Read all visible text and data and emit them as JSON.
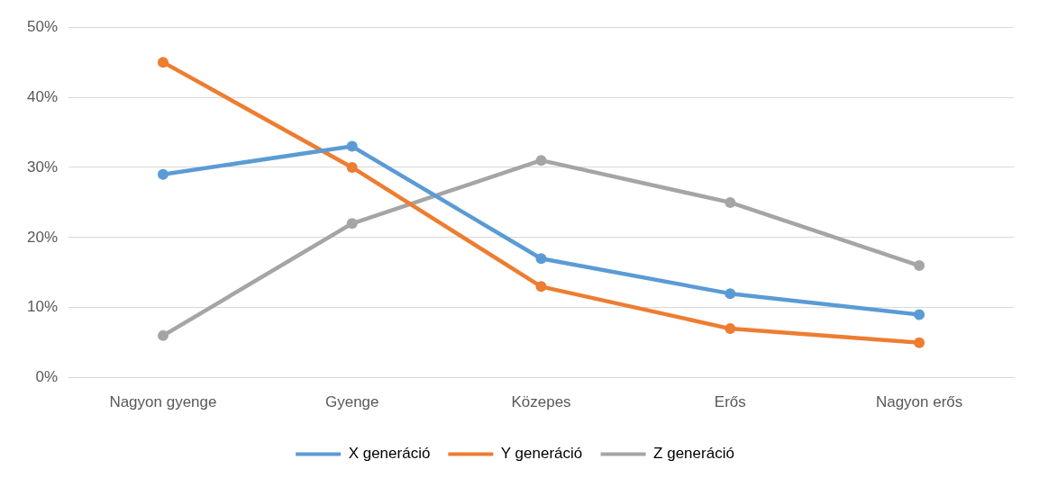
{
  "chart_data": {
    "type": "line",
    "categories": [
      "Nagyon gyenge",
      "Gyenge",
      "Közepes",
      "Erős",
      "Nagyon erős"
    ],
    "series": [
      {
        "name": "X generáció",
        "color": "#5b9bd5",
        "values": [
          29,
          33,
          17,
          12,
          9
        ]
      },
      {
        "name": "Y generáció",
        "color": "#ed7d31",
        "values": [
          45,
          30,
          13,
          7,
          5
        ]
      },
      {
        "name": "Z generáció",
        "color": "#a5a5a5",
        "values": [
          6,
          22,
          31,
          25,
          16
        ]
      }
    ],
    "ylim": [
      0,
      50
    ],
    "yticks": [
      {
        "value": 0,
        "label": "0%"
      },
      {
        "value": 10,
        "label": "10%"
      },
      {
        "value": 20,
        "label": "20%"
      },
      {
        "value": 30,
        "label": "30%"
      },
      {
        "value": 40,
        "label": "40%"
      },
      {
        "value": 50,
        "label": "50%"
      }
    ],
    "grid": "y",
    "legend": "bottom",
    "marker": "circle",
    "line_style": "solid"
  }
}
